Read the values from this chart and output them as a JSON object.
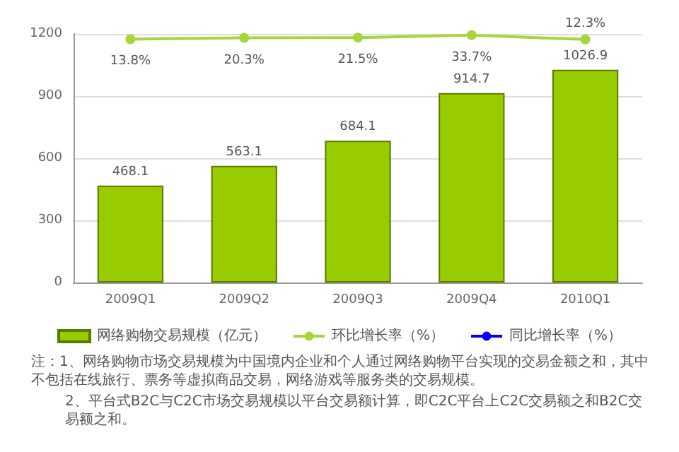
{
  "chart_data": {
    "type": "bar",
    "categories": [
      "2009Q1",
      "2009Q2",
      "2009Q3",
      "2009Q4",
      "2010Q1"
    ],
    "series": [
      {
        "name": "网络购物交易规模（亿元）",
        "color": "#99cc00",
        "values": [
          468.1,
          563.1,
          684.1,
          914.7,
          1026.9
        ],
        "data_labels": true
      },
      {
        "name": "环比增长率（%）",
        "type": "line",
        "axis": "y2",
        "color": "#a8d43c",
        "values": [
          13.8,
          20.3,
          21.5,
          33.7,
          12.3
        ],
        "value_labels": [
          "13.8%",
          "20.3%",
          "21.5%",
          "33.7%",
          "12.3%"
        ]
      },
      {
        "name": "同比增长率（%）",
        "type": "line",
        "axis": "y2",
        "color": "#0000ff",
        "values": [
          null,
          null,
          null,
          null,
          null
        ]
      }
    ],
    "ylim": [
      0,
      1200
    ],
    "yticks": [
      0,
      300,
      600,
      900,
      1200
    ],
    "y2lim": [
      -1200,
      40
    ],
    "grid": "y",
    "legend": "bottom",
    "marker": "circle",
    "tick_labels": "xy",
    "annotations": [
      "注：1、网络购物市场交易规模为中国境内企业和个人通过网络购物平台实现的交易金额之和，其中不包括在线旅行、票务等虚拟商品交易，网络游戏等服务类的交易规模。",
      "2、平台式B2C与C2C市场交易规模以平台交易额计算，即C2C平台上C2C交易额之和B2C交易额之和。"
    ]
  }
}
